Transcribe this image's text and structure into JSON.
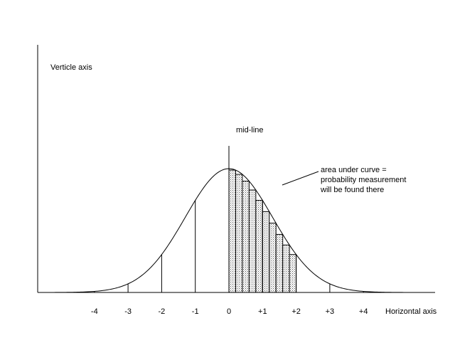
{
  "diagram": {
    "vertical_axis_label": "Verticle axis",
    "horizontal_axis_label": "Horizontal axis",
    "midline_label": "mid-line",
    "annotation_lines": [
      "area under curve =",
      "probability measurement",
      "will be found there"
    ],
    "ticks": [
      {
        "value": -4,
        "label": "-4"
      },
      {
        "value": -3,
        "label": "-3"
      },
      {
        "value": -2,
        "label": "-2"
      },
      {
        "value": -1,
        "label": "-1"
      },
      {
        "value": 0,
        "label": "0"
      },
      {
        "value": 1,
        "label": "+1"
      },
      {
        "value": 2,
        "label": "+2"
      },
      {
        "value": 3,
        "label": "+3"
      },
      {
        "value": 4,
        "label": "+4"
      }
    ],
    "curve": "normal distribution",
    "shaded_region": {
      "from": 0,
      "to": 2,
      "strips": 10,
      "fill": "stippled grey"
    },
    "colors": {
      "line": "#000000",
      "background": "#ffffff",
      "shade": "#c8c8c8"
    }
  }
}
